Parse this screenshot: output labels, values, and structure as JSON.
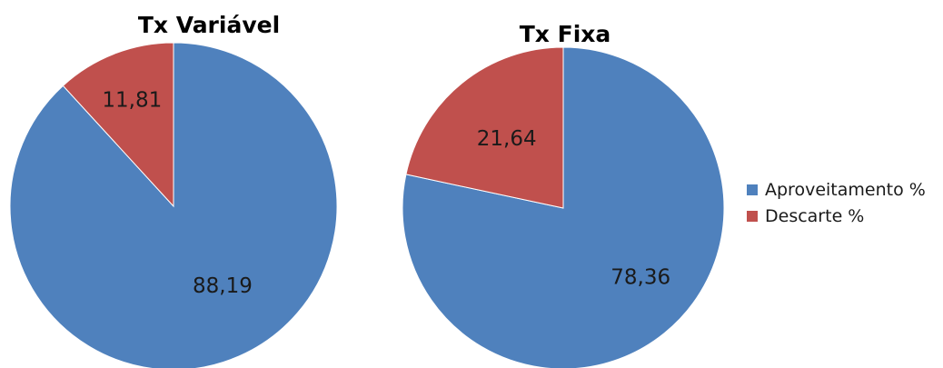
{
  "chart_data": [
    {
      "type": "pie",
      "title": "Tx Variável",
      "categories": [
        "Aproveitamento %",
        "Descarte %"
      ],
      "values": [
        88.19,
        11.81
      ],
      "labels": [
        "88,19",
        "11,81"
      ],
      "colors": [
        "#4F81BD",
        "#C0504D"
      ],
      "start_angle": "12 o'clock",
      "direction": "clockwise"
    },
    {
      "type": "pie",
      "title": "Tx Fixa",
      "categories": [
        "Aproveitamento %",
        "Descarte %"
      ],
      "values": [
        78.36,
        21.64
      ],
      "labels": [
        "78,36",
        "21,64"
      ],
      "colors": [
        "#4F81BD",
        "#C0504D"
      ],
      "start_angle": "12 o'clock",
      "direction": "clockwise"
    }
  ],
  "legend": {
    "placement": "right",
    "items": [
      {
        "label": "Aproveitamento %",
        "color": "#4F81BD"
      },
      {
        "label": "Descarte %",
        "color": "#C0504D"
      }
    ]
  }
}
